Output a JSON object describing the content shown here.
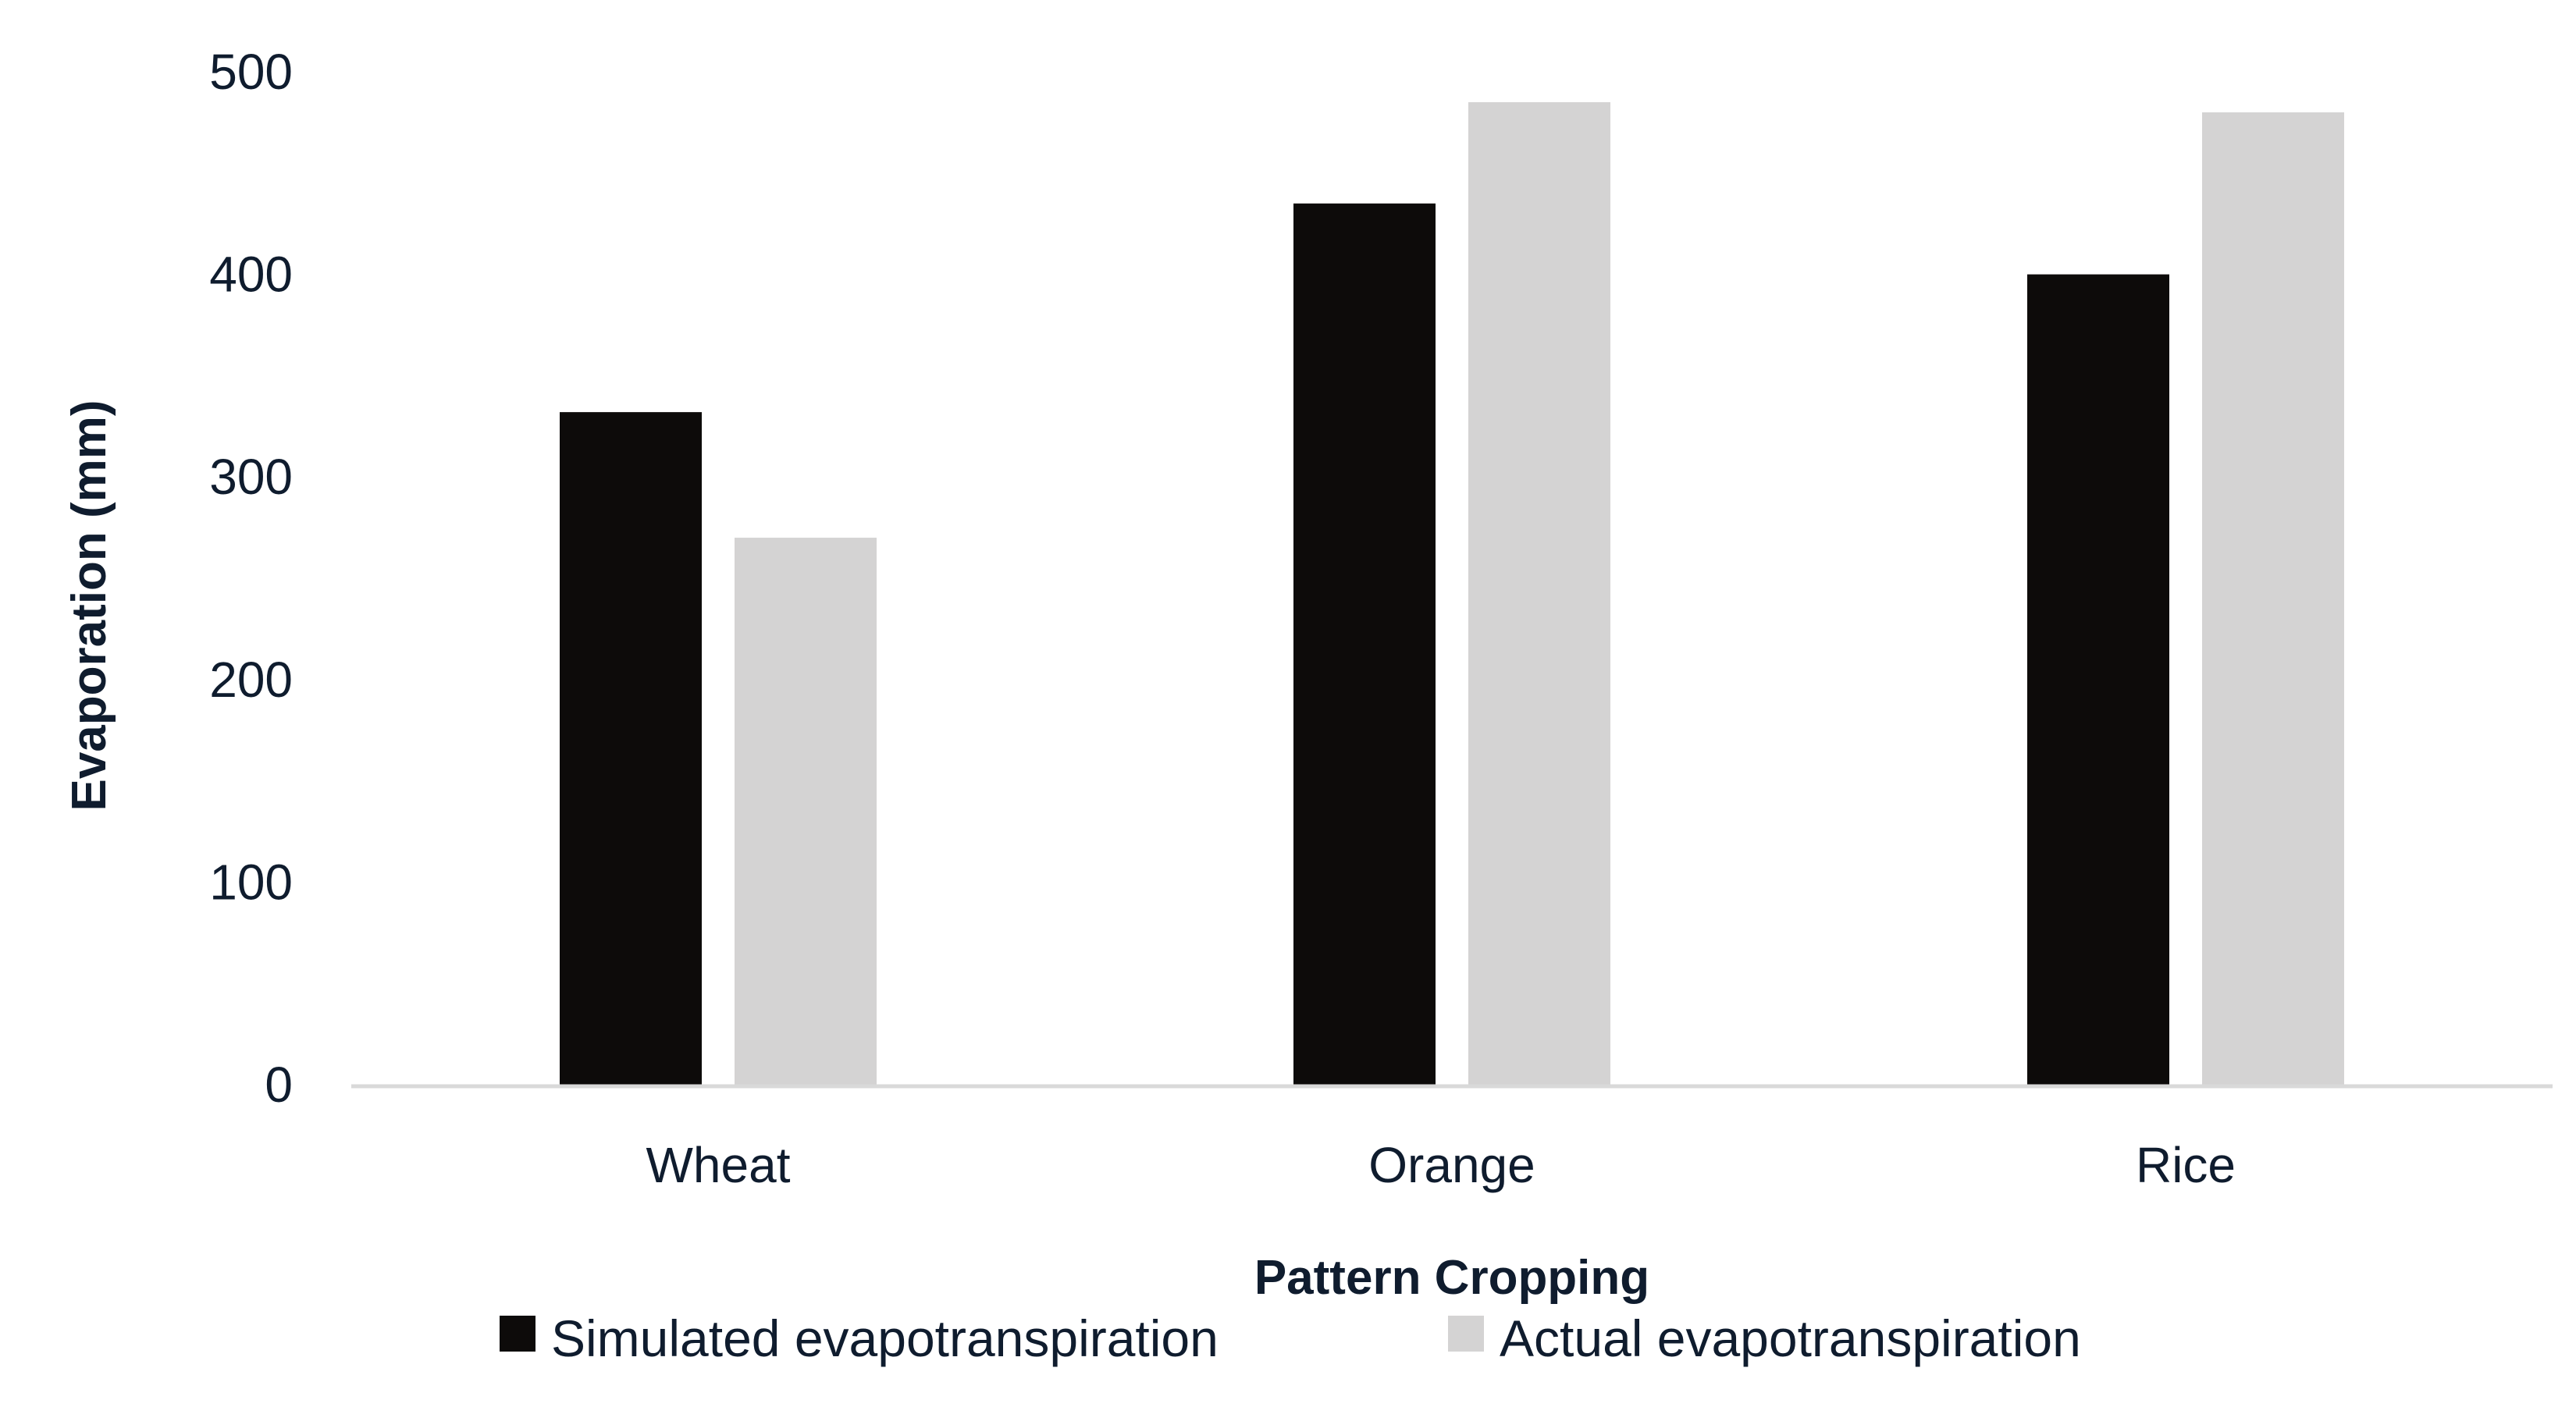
{
  "chart_data": {
    "type": "bar",
    "title": "",
    "xlabel": "Pattern Cropping",
    "ylabel": "Evaporation (mm)",
    "categories": [
      "Wheat",
      "Orange",
      "Rice"
    ],
    "ylim": [
      0,
      500
    ],
    "yticks": [
      "0",
      "100",
      "200",
      "300",
      "400",
      "500"
    ],
    "grid": false,
    "legend_position": "bottom",
    "series": [
      {
        "name": "Simulated evapotranspiration",
        "values": [
          332,
          435,
          400
        ],
        "color": "#0d0b0a"
      },
      {
        "name": "Actual evapotranspiration",
        "values": [
          270,
          485,
          480
        ],
        "color": "#d4d3d3"
      }
    ],
    "colors": {
      "text": "#0f1c2e",
      "axis_line": "#d9d9d9",
      "background": "#ffffff"
    }
  }
}
